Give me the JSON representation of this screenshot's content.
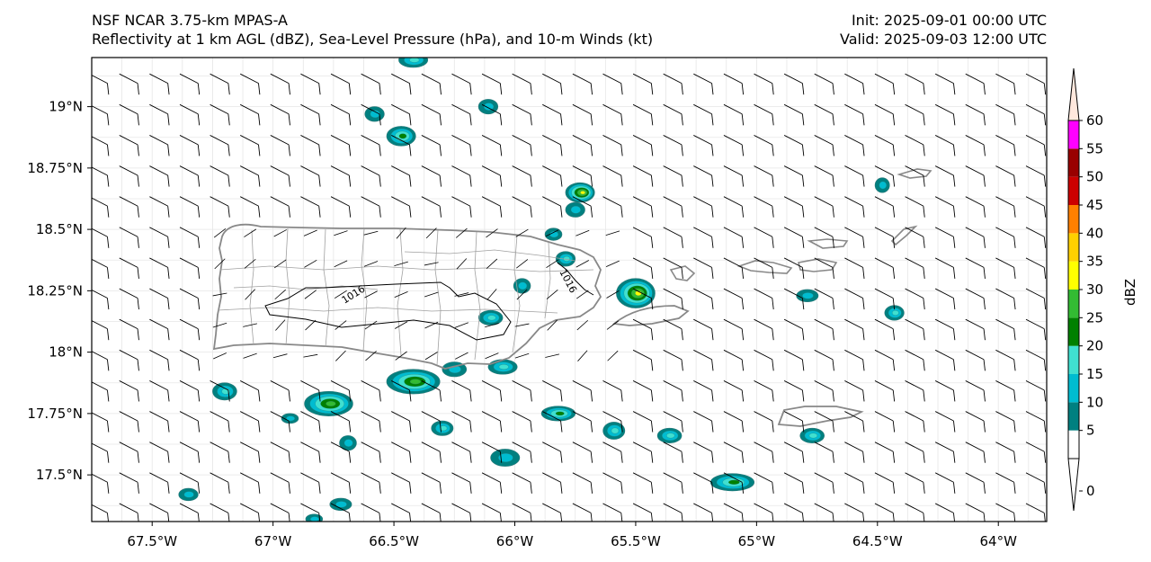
{
  "header": {
    "title_line1": "NSF NCAR 3.75-km MPAS-A",
    "title_line2": "Reflectivity at 1 km AGL (dBZ), Sea-Level Pressure (hPa), and 10-m Winds (kt)",
    "init": "Init: 2025-09-01 00:00 UTC",
    "valid": "Valid: 2025-09-03 12:00 UTC"
  },
  "map": {
    "lon_range": [
      -67.75,
      -63.8
    ],
    "lat_range": [
      17.31,
      19.2
    ],
    "gridlines": true,
    "lon_ticks": [
      {
        "value": -67.5,
        "label": "67.5°W"
      },
      {
        "value": -67.0,
        "label": "67°W"
      },
      {
        "value": -66.5,
        "label": "66.5°W"
      },
      {
        "value": -66.0,
        "label": "66°W"
      },
      {
        "value": -65.5,
        "label": "65.5°W"
      },
      {
        "value": -65.0,
        "label": "65°W"
      },
      {
        "value": -64.5,
        "label": "64.5°W"
      },
      {
        "value": -64.0,
        "label": "64°W"
      }
    ],
    "lat_ticks": [
      {
        "value": 19.0,
        "label": "19°N"
      },
      {
        "value": 18.75,
        "label": "18.75°N"
      },
      {
        "value": 18.5,
        "label": "18.5°N"
      },
      {
        "value": 18.25,
        "label": "18.25°N"
      },
      {
        "value": 18.0,
        "label": "18°N"
      },
      {
        "value": 17.75,
        "label": "17.75°N"
      },
      {
        "value": 17.5,
        "label": "17.5°N"
      }
    ],
    "isobar_label": "1016",
    "coast_color": "#888888",
    "municipal_color": "#a0a0a0"
  },
  "colorbar": {
    "label": "dBZ",
    "levels": [
      0,
      5,
      10,
      15,
      20,
      25,
      30,
      35,
      40,
      45,
      50,
      55,
      60
    ],
    "tick_labels": [
      "0",
      "5",
      "10",
      "15",
      "20",
      "25",
      "30",
      "35",
      "40",
      "45",
      "50",
      "55",
      "60"
    ],
    "colors": [
      "#ffffff",
      "#008080",
      "#00bcd0",
      "#40e0d0",
      "#008000",
      "#33bb33",
      "#ffff00",
      "#ffd000",
      "#ff8000",
      "#cc0000",
      "#990000",
      "#ff00ff"
    ],
    "under_color": "#ffffff",
    "over_color": "#ffe8dd"
  },
  "cells": [
    {
      "lon": -66.42,
      "lat": 17.88,
      "rx": 0.11,
      "ry": 0.05,
      "max": 4
    },
    {
      "lon": -66.77,
      "lat": 17.79,
      "rx": 0.1,
      "ry": 0.05,
      "max": 4
    },
    {
      "lon": -65.5,
      "lat": 18.24,
      "rx": 0.08,
      "ry": 0.06,
      "max": 5
    },
    {
      "lon": -65.73,
      "lat": 18.65,
      "rx": 0.06,
      "ry": 0.04,
      "max": 5
    },
    {
      "lon": -65.1,
      "lat": 17.47,
      "rx": 0.09,
      "ry": 0.035,
      "max": 3
    },
    {
      "lon": -66.47,
      "lat": 18.88,
      "rx": 0.06,
      "ry": 0.04,
      "max": 3
    },
    {
      "lon": -65.82,
      "lat": 17.75,
      "rx": 0.07,
      "ry": 0.03,
      "max": 3
    },
    {
      "lon": -65.59,
      "lat": 17.68,
      "rx": 0.045,
      "ry": 0.035,
      "max": 2
    },
    {
      "lon": -65.36,
      "lat": 17.66,
      "rx": 0.05,
      "ry": 0.03,
      "max": 2
    },
    {
      "lon": -64.77,
      "lat": 17.66,
      "rx": 0.05,
      "ry": 0.03,
      "max": 2
    },
    {
      "lon": -66.3,
      "lat": 17.69,
      "rx": 0.045,
      "ry": 0.03,
      "max": 2
    },
    {
      "lon": -67.2,
      "lat": 17.84,
      "rx": 0.05,
      "ry": 0.035,
      "max": 2
    },
    {
      "lon": -66.1,
      "lat": 18.14,
      "rx": 0.05,
      "ry": 0.03,
      "max": 2
    },
    {
      "lon": -66.05,
      "lat": 17.94,
      "rx": 0.06,
      "ry": 0.03,
      "max": 2
    },
    {
      "lon": -64.43,
      "lat": 18.16,
      "rx": 0.04,
      "ry": 0.03,
      "max": 2
    },
    {
      "lon": -65.79,
      "lat": 18.38,
      "rx": 0.04,
      "ry": 0.03,
      "max": 2
    },
    {
      "lon": -64.79,
      "lat": 18.23,
      "rx": 0.045,
      "ry": 0.025,
      "max": 1
    },
    {
      "lon": -66.42,
      "lat": 19.19,
      "rx": 0.06,
      "ry": 0.03,
      "max": 2
    },
    {
      "lon": -66.58,
      "lat": 18.97,
      "rx": 0.04,
      "ry": 0.03,
      "max": 1
    },
    {
      "lon": -66.11,
      "lat": 19.0,
      "rx": 0.04,
      "ry": 0.03,
      "max": 1
    },
    {
      "lon": -65.84,
      "lat": 18.48,
      "rx": 0.035,
      "ry": 0.025,
      "max": 1
    },
    {
      "lon": -65.75,
      "lat": 18.58,
      "rx": 0.04,
      "ry": 0.03,
      "max": 1
    },
    {
      "lon": -65.97,
      "lat": 18.27,
      "rx": 0.035,
      "ry": 0.03,
      "max": 1
    },
    {
      "lon": -66.93,
      "lat": 17.73,
      "rx": 0.035,
      "ry": 0.02,
      "max": 1
    },
    {
      "lon": -66.69,
      "lat": 17.63,
      "rx": 0.035,
      "ry": 0.03,
      "max": 1
    },
    {
      "lon": -66.04,
      "lat": 17.57,
      "rx": 0.06,
      "ry": 0.035,
      "max": 1
    },
    {
      "lon": -67.35,
      "lat": 17.42,
      "rx": 0.04,
      "ry": 0.025,
      "max": 1
    },
    {
      "lon": -66.72,
      "lat": 17.38,
      "rx": 0.045,
      "ry": 0.025,
      "max": 1
    },
    {
      "lon": -66.25,
      "lat": 17.93,
      "rx": 0.05,
      "ry": 0.03,
      "max": 1
    },
    {
      "lon": -66.83,
      "lat": 17.32,
      "rx": 0.035,
      "ry": 0.02,
      "max": 1
    },
    {
      "lon": -64.48,
      "lat": 18.68,
      "rx": 0.03,
      "ry": 0.03,
      "max": 1
    }
  ]
}
